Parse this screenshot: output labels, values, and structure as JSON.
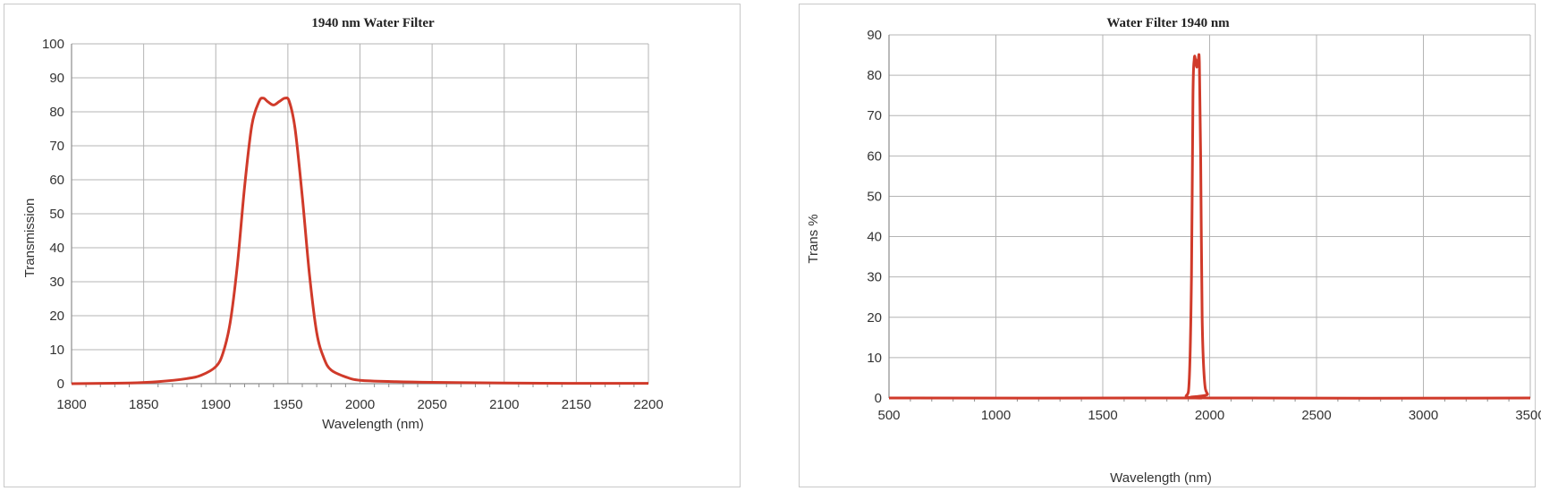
{
  "charts": {
    "left": {
      "title": "1940 nm Water Filter",
      "xlabel": "Wavelength (nm)",
      "ylabel": "Transmission"
    },
    "right": {
      "title": "Water Filter 1940 nm",
      "xlabel": "Wavelength (nm)",
      "ylabel": "Trans %"
    }
  },
  "colors": {
    "line": "#d03a2a",
    "grid": "#b4b4b4",
    "axis": "#8c8c8c"
  },
  "chart_data": [
    {
      "type": "line",
      "title": "1940 nm Water Filter",
      "xlabel": "Wavelength (nm)",
      "ylabel": "Transmission",
      "xlim": [
        1800,
        2200
      ],
      "ylim": [
        0,
        100
      ],
      "xticks": [
        1800,
        1850,
        1900,
        1950,
        2000,
        2050,
        2100,
        2150,
        2200
      ],
      "yticks": [
        0,
        10,
        20,
        30,
        40,
        50,
        60,
        70,
        80,
        90,
        100
      ],
      "grid": true,
      "series": [
        {
          "x": [
            1800,
            1840,
            1860,
            1880,
            1890,
            1900,
            1905,
            1910,
            1915,
            1920,
            1925,
            1930,
            1933,
            1936,
            1940,
            1944,
            1948,
            1951,
            1955,
            1960,
            1965,
            1970,
            1975,
            1980,
            1990,
            2000,
            2025,
            2050,
            2100,
            2150,
            2200
          ],
          "y": [
            0,
            0.2,
            0.6,
            1.5,
            2.5,
            5,
            9,
            18,
            35,
            58,
            76,
            83,
            84,
            83,
            82,
            83,
            84,
            83,
            75,
            55,
            32,
            15,
            7.5,
            4,
            2,
            1,
            0.6,
            0.4,
            0.2,
            0.1,
            0.1
          ]
        }
      ]
    },
    {
      "type": "line",
      "title": "Water Filter 1940 nm",
      "xlabel": "Wavelength (nm)",
      "ylabel": "Trans %",
      "xlim": [
        500,
        3500
      ],
      "ylim": [
        0,
        90
      ],
      "xticks": [
        500,
        1000,
        1500,
        2000,
        2500,
        3000,
        3500
      ],
      "yticks": [
        0,
        10,
        20,
        30,
        40,
        50,
        60,
        70,
        80,
        90
      ],
      "grid": true,
      "series": [
        {
          "x": [
            500,
            1850,
            1890,
            1905,
            1915,
            1922,
            1928,
            1933,
            1940,
            1947,
            1952,
            1958,
            1965,
            1975,
            1990,
            2030,
            3500
          ],
          "y": [
            0,
            0,
            0.5,
            5,
            30,
            75,
            84,
            84,
            82,
            84,
            83,
            60,
            20,
            5,
            1,
            0,
            0
          ]
        }
      ]
    }
  ]
}
